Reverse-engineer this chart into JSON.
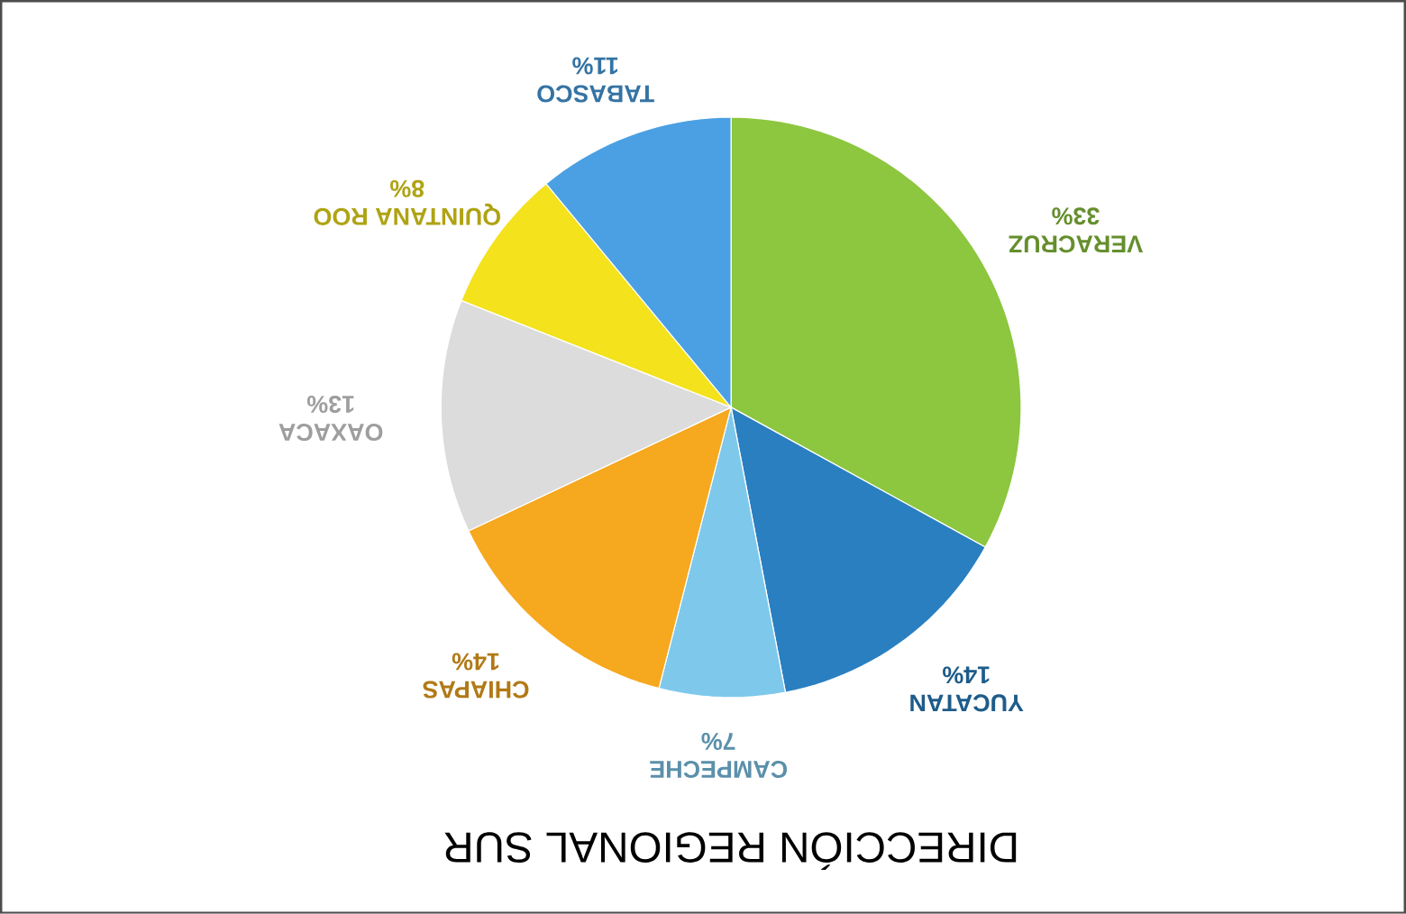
{
  "chart_data": {
    "type": "pie",
    "title": "DIRECCIÓN REGIONAL SUR",
    "categories": [
      "VERACRUZ",
      "YUCATAN",
      "CAMPECHE",
      "CHIAPAS",
      "OAXACA",
      "QUINTANA ROO",
      "TABASCO"
    ],
    "values": [
      33,
      14,
      7,
      14,
      13,
      8,
      11
    ],
    "value_labels": [
      "33%",
      "14%",
      "7%",
      "14%",
      "13%",
      "8%",
      "11%"
    ],
    "colors": [
      "#8dc63f",
      "#2a7fc0",
      "#7ec8ec",
      "#f6a81e",
      "#dcdcdc",
      "#f3e21c",
      "#4aa0e2"
    ]
  }
}
